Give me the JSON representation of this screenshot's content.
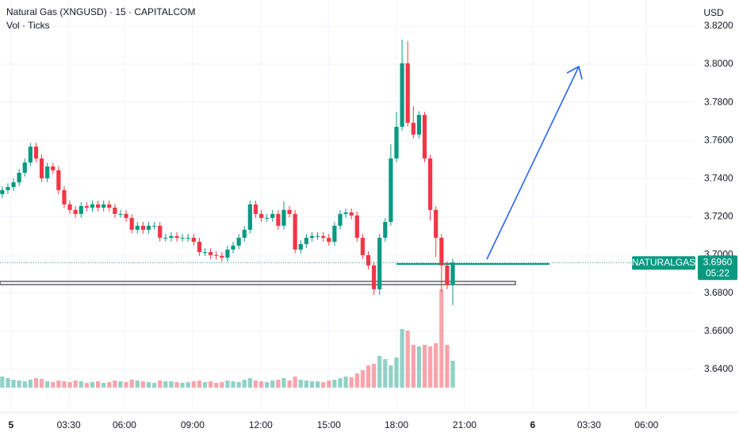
{
  "chart_data": {
    "type": "candlestick",
    "title": "Natural Gas (XNGUSD) · 15 · CAPITALCOM",
    "subtitle": "Vol · Ticks",
    "currency": "USD",
    "symbol_label": "NATURALGAS",
    "countdown": "05:22",
    "last_price": {
      "value": 3.696,
      "label": "3.6960"
    },
    "up_color": "#089981",
    "down_color": "#f23645",
    "grid": true,
    "x": [
      0,
      1,
      2,
      3,
      4,
      5,
      6,
      7,
      8,
      9,
      10,
      11,
      12,
      13,
      14,
      15,
      16,
      17,
      18,
      19,
      20,
      21,
      22,
      23,
      24,
      25,
      26,
      27,
      28,
      29,
      30,
      31,
      32,
      33,
      34,
      35,
      36,
      37,
      38,
      39,
      40,
      41,
      42,
      43,
      44,
      45,
      46,
      47,
      48,
      49,
      50,
      51,
      52,
      53,
      54,
      55,
      56,
      57,
      58,
      59,
      60,
      61,
      62,
      63,
      64,
      65,
      66,
      67,
      68,
      69,
      70,
      71,
      72,
      73,
      74,
      75,
      76,
      77,
      78,
      79,
      80
    ],
    "open": [
      3.7319,
      3.734,
      3.7356,
      3.7381,
      3.7431,
      3.7485,
      3.7568,
      3.7506,
      3.7402,
      3.7464,
      3.7444,
      3.734,
      3.7265,
      3.7236,
      3.7215,
      3.7256,
      3.7248,
      3.7265,
      3.7248,
      3.7265,
      3.7248,
      3.7215,
      3.7215,
      3.7194,
      3.7132,
      3.7153,
      3.7132,
      3.7153,
      3.7153,
      3.709,
      3.709,
      3.7099,
      3.709,
      3.709,
      3.709,
      3.7069,
      3.7015,
      3.7015,
      3.6999,
      3.6995,
      3.6986,
      3.7028,
      3.7049,
      3.709,
      3.7132,
      3.7265,
      3.7215,
      3.7194,
      3.7194,
      3.7215,
      3.7153,
      3.7236,
      3.7215,
      3.7028,
      3.7057,
      3.709,
      3.7099,
      3.7099,
      3.709,
      3.7069,
      3.7153,
      3.7215,
      3.7223,
      3.7207,
      3.709,
      3.6999,
      3.6945,
      3.682,
      3.709,
      3.7173,
      3.7506,
      3.7672,
      3.8005,
      3.7693,
      3.7631,
      3.7734,
      3.7506,
      3.7236,
      3.709,
      3.6945,
      3.6841
    ],
    "high": [
      3.736,
      3.7376,
      3.7401,
      3.7451,
      3.7505,
      3.7588,
      3.7588,
      3.7526,
      3.7484,
      3.7484,
      3.7464,
      3.736,
      3.7285,
      3.7256,
      3.7276,
      3.7276,
      3.7285,
      3.7285,
      3.7285,
      3.7285,
      3.7268,
      3.7235,
      3.7235,
      3.7214,
      3.7173,
      3.7173,
      3.7173,
      3.7173,
      3.7173,
      3.711,
      3.7119,
      3.7119,
      3.711,
      3.711,
      3.711,
      3.7089,
      3.7035,
      3.7035,
      3.7019,
      3.7015,
      3.7048,
      3.7069,
      3.711,
      3.7152,
      3.7285,
      3.7285,
      3.7235,
      3.7214,
      3.7235,
      3.7235,
      3.728,
      3.7256,
      3.7235,
      3.7077,
      3.711,
      3.7119,
      3.7119,
      3.7119,
      3.711,
      3.7173,
      3.7235,
      3.7243,
      3.7243,
      3.7227,
      3.711,
      3.7019,
      3.6965,
      3.711,
      3.7193,
      3.758,
      3.775,
      3.8129,
      3.812,
      3.778,
      3.7754,
      3.775,
      3.7526,
      3.7256,
      3.711,
      3.6965,
      3.698
    ],
    "low": [
      3.7299,
      3.732,
      3.7336,
      3.7361,
      3.7411,
      3.7465,
      3.7486,
      3.7382,
      3.7382,
      3.7424,
      3.732,
      3.7245,
      3.7216,
      3.7195,
      3.7195,
      3.7228,
      3.7228,
      3.7228,
      3.7228,
      3.7228,
      3.7195,
      3.7195,
      3.7174,
      3.7112,
      3.7112,
      3.7112,
      3.7112,
      3.7133,
      3.707,
      3.707,
      3.707,
      3.707,
      3.707,
      3.707,
      3.7049,
      3.6995,
      3.6995,
      3.6979,
      3.6975,
      3.6966,
      3.6966,
      3.7008,
      3.7029,
      3.707,
      3.7112,
      3.7195,
      3.7174,
      3.7174,
      3.7174,
      3.7133,
      3.7133,
      3.7195,
      3.7008,
      3.7008,
      3.7037,
      3.707,
      3.7079,
      3.707,
      3.7049,
      3.7049,
      3.7133,
      3.7195,
      3.7187,
      3.707,
      3.6979,
      3.6925,
      3.6791,
      3.6791,
      3.707,
      3.7153,
      3.7486,
      3.7652,
      3.7673,
      3.7611,
      3.7611,
      3.7486,
      3.718,
      3.699,
      3.6808,
      3.6821,
      3.6737
    ],
    "close": [
      3.734,
      3.7356,
      3.7381,
      3.7431,
      3.7485,
      3.7568,
      3.7506,
      3.7402,
      3.7464,
      3.7444,
      3.734,
      3.7265,
      3.7236,
      3.7215,
      3.7256,
      3.7248,
      3.7265,
      3.7248,
      3.7265,
      3.7248,
      3.7215,
      3.7215,
      3.7194,
      3.7132,
      3.7153,
      3.7132,
      3.7153,
      3.7153,
      3.709,
      3.709,
      3.7099,
      3.709,
      3.709,
      3.709,
      3.7069,
      3.7015,
      3.7015,
      3.6999,
      3.6995,
      3.6986,
      3.7028,
      3.7049,
      3.709,
      3.7132,
      3.7265,
      3.7215,
      3.7194,
      3.7194,
      3.7215,
      3.7153,
      3.7236,
      3.7215,
      3.7028,
      3.7057,
      3.709,
      3.7099,
      3.7099,
      3.709,
      3.7069,
      3.7153,
      3.7215,
      3.7223,
      3.7207,
      3.709,
      3.6999,
      3.6945,
      3.682,
      3.709,
      3.7173,
      3.7506,
      3.7672,
      3.8005,
      3.7693,
      3.7631,
      3.7734,
      3.7506,
      3.7236,
      3.709,
      3.6945,
      3.6841,
      3.696
    ],
    "volume": [
      14,
      12,
      10,
      9,
      8,
      10,
      12,
      11,
      8,
      7,
      9,
      8,
      7,
      9,
      8,
      6,
      7,
      8,
      6,
      7,
      9,
      8,
      7,
      10,
      9,
      8,
      7,
      6,
      9,
      8,
      8,
      7,
      6,
      7,
      8,
      9,
      7,
      8,
      6,
      7,
      9,
      8,
      7,
      10,
      12,
      9,
      8,
      7,
      9,
      10,
      12,
      9,
      14,
      10,
      9,
      8,
      8,
      7,
      9,
      10,
      12,
      14,
      13,
      18,
      22,
      28,
      30,
      40,
      36,
      28,
      38,
      74,
      72,
      54,
      52,
      54,
      52,
      56,
      124,
      54,
      34
    ],
    "vlim": [
      0,
      130
    ],
    "xlim": [
      -0.4,
      122.8
    ],
    "xticks": [
      {
        "value": 1.55,
        "label": "5"
      },
      {
        "value": 11.8,
        "label": "03:30"
      },
      {
        "value": 21.7,
        "label": "06:00"
      },
      {
        "value": 33.8,
        "label": "09:00"
      },
      {
        "value": 45.9,
        "label": "12:00"
      },
      {
        "value": 58.0,
        "label": "15:00"
      },
      {
        "value": 70.0,
        "label": "18:00"
      },
      {
        "value": 82.1,
        "label": "21:00"
      },
      {
        "value": 94.2,
        "label": "6"
      },
      {
        "value": 104.2,
        "label": "03:30"
      },
      {
        "value": 114.4,
        "label": "06:00"
      }
    ],
    "ylim": [
      3.6175,
      3.8337
    ],
    "yticks": [
      {
        "value": 3.64,
        "label": "3.6400"
      },
      {
        "value": 3.66,
        "label": "3.6600"
      },
      {
        "value": 3.68,
        "label": "3.6800"
      },
      {
        "value": 3.7,
        "label": "3.7000"
      },
      {
        "value": 3.72,
        "label": "3.7200"
      },
      {
        "value": 3.74,
        "label": "3.7400"
      },
      {
        "value": 3.76,
        "label": "3.7600"
      },
      {
        "value": 3.78,
        "label": "3.7800"
      },
      {
        "value": 3.8,
        "label": "3.8000"
      },
      {
        "value": 3.82,
        "label": "3.8200"
      }
    ]
  }
}
